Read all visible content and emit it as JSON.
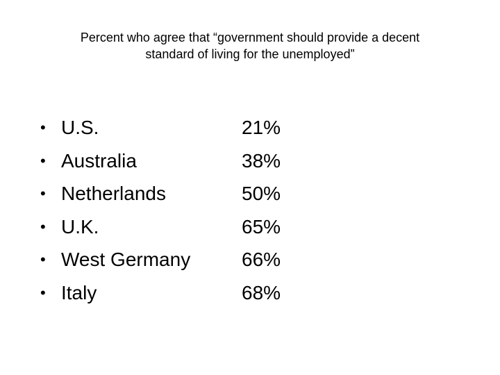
{
  "slide": {
    "title_line1": "Percent who agree that “government should provide a decent",
    "title_line2": "standard of living for the unemployed”",
    "bullet_glyph": "•",
    "rows": [
      {
        "country": "U.S.",
        "value": "21%"
      },
      {
        "country": "Australia",
        "value": "38%"
      },
      {
        "country": "Netherlands",
        "value": "50%"
      },
      {
        "country": "U.K.",
        "value": "65%"
      },
      {
        "country": "West Germany",
        "value": "66%"
      },
      {
        "country": "Italy",
        "value": "68%"
      }
    ]
  }
}
